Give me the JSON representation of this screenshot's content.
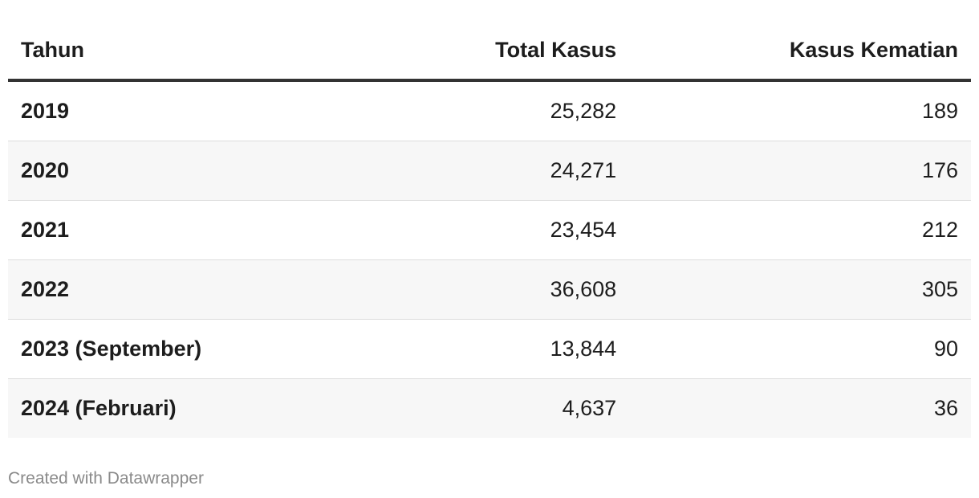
{
  "chart_data": {
    "type": "table",
    "columns": [
      "Tahun",
      "Total Kasus",
      "Kasus Kematian"
    ],
    "rows": [
      [
        "2019",
        "25,282",
        "189"
      ],
      [
        "2020",
        "24,271",
        "176"
      ],
      [
        "2021",
        "23,454",
        "212"
      ],
      [
        "2022",
        "36,608",
        "305"
      ],
      [
        "2023 (September)",
        "13,844",
        "90"
      ],
      [
        "2024 (Februari)",
        "4,637",
        "36"
      ]
    ]
  },
  "footer": {
    "credit": "Created with Datawrapper"
  }
}
